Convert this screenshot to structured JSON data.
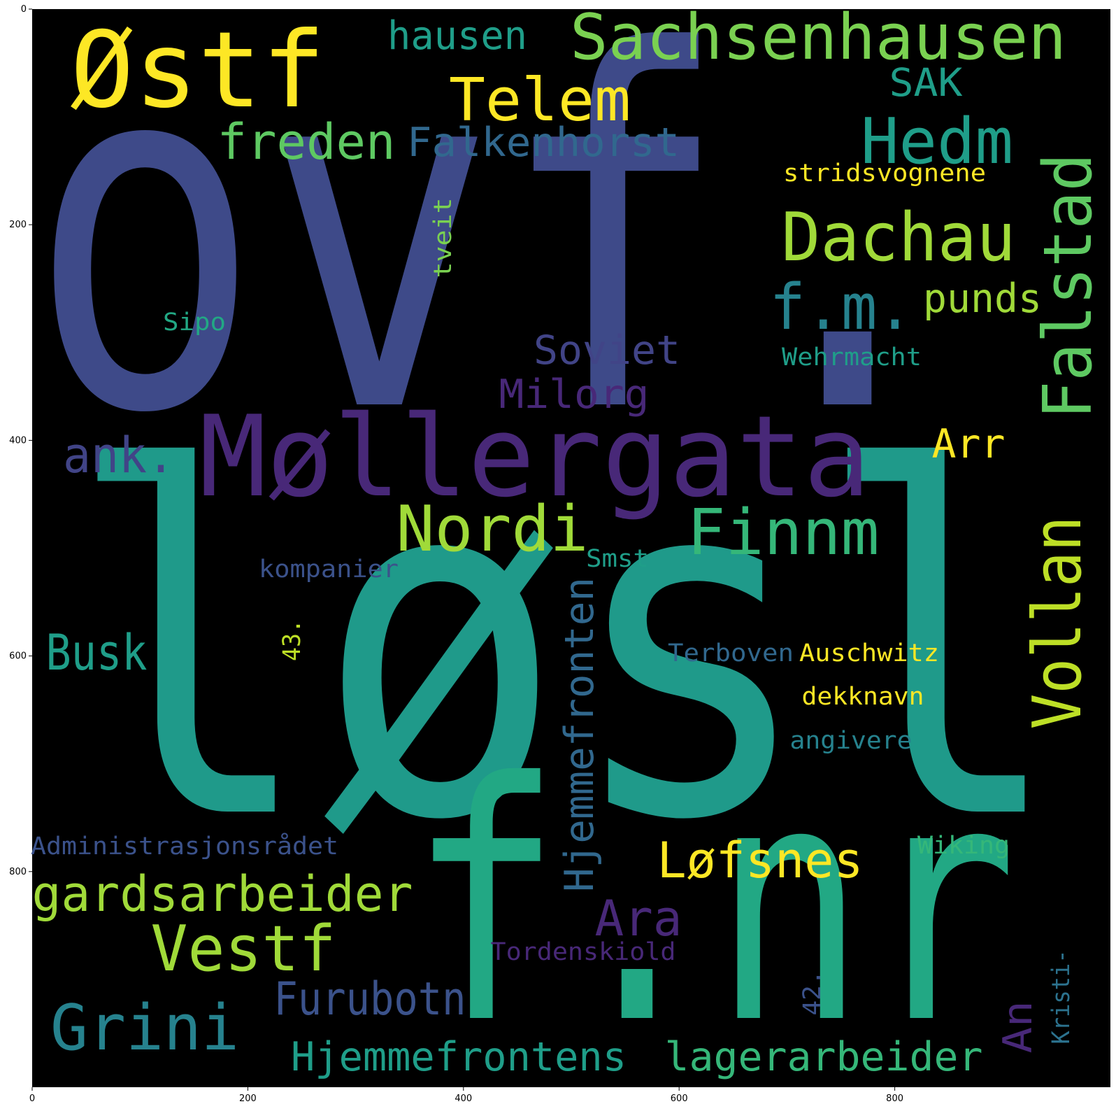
{
  "figure": {
    "x_axis": {
      "ticks": [
        "0",
        "200",
        "400",
        "600",
        "800"
      ]
    },
    "y_axis": {
      "ticks": [
        "0",
        "200",
        "400",
        "600",
        "800"
      ]
    }
  },
  "words": [
    {
      "text": "ovf.",
      "color": "#3e4a89"
    },
    {
      "text": "løsl",
      "color": "#1f9a8a"
    },
    {
      "text": "f.nr",
      "color": "#22a884"
    },
    {
      "text": "Møllergata",
      "color": "#482878"
    },
    {
      "text": "Østf",
      "color": "#fde725"
    },
    {
      "text": "Sachsenhausen",
      "color": "#7ad151"
    },
    {
      "text": "Telem",
      "color": "#fde725"
    },
    {
      "text": "hausen",
      "color": "#1f9e89"
    },
    {
      "text": "SAK",
      "color": "#1f9e89"
    },
    {
      "text": "Hedm",
      "color": "#1f9e89"
    },
    {
      "text": "freden",
      "color": "#5ec962"
    },
    {
      "text": "Falkenhorst",
      "color": "#31688e"
    },
    {
      "text": "stridsvognene",
      "color": "#fde725"
    },
    {
      "text": "Falstad",
      "color": "#5ec962"
    },
    {
      "text": "Dachau",
      "color": "#a0da39"
    },
    {
      "text": "tveit",
      "color": "#7ad151"
    },
    {
      "text": "f.m.",
      "color": "#26828e"
    },
    {
      "text": "punds",
      "color": "#a0da39"
    },
    {
      "text": "Sipo",
      "color": "#22a884"
    },
    {
      "text": "Soviet",
      "color": "#414487"
    },
    {
      "text": "Wehrmacht",
      "color": "#1f9e89"
    },
    {
      "text": "Milorg",
      "color": "#482878"
    },
    {
      "text": "ank.",
      "color": "#414487"
    },
    {
      "text": "Arr",
      "color": "#fde725"
    },
    {
      "text": "Nordi",
      "color": "#a0da39"
    },
    {
      "text": "Finnm",
      "color": "#35b779"
    },
    {
      "text": "Vollan",
      "color": "#bddf26"
    },
    {
      "text": "kompanier",
      "color": "#3b528b"
    },
    {
      "text": "Smst",
      "color": "#1f9e89"
    },
    {
      "text": "Hjemmefronten",
      "color": "#31688e"
    },
    {
      "text": "43.",
      "color": "#bddf26"
    },
    {
      "text": "Busk",
      "color": "#1f9e89"
    },
    {
      "text": "Terboven",
      "color": "#31688e"
    },
    {
      "text": "Auschwitz",
      "color": "#fde725"
    },
    {
      "text": "dekknavn",
      "color": "#fde725"
    },
    {
      "text": "angivere",
      "color": "#26828e"
    },
    {
      "text": "Administrasjonsrådet",
      "color": "#3b528b"
    },
    {
      "text": "Wiking",
      "color": "#35b779"
    },
    {
      "text": "Løfsnes",
      "color": "#fde725"
    },
    {
      "text": "gardsarbeider",
      "color": "#a0da39"
    },
    {
      "text": "Ara",
      "color": "#482878"
    },
    {
      "text": "Vestf",
      "color": "#a0da39"
    },
    {
      "text": "Tordenskiold",
      "color": "#482878"
    },
    {
      "text": "42.",
      "color": "#3b528b"
    },
    {
      "text": "Kristi-",
      "color": "#2c728e"
    },
    {
      "text": "An",
      "color": "#482878"
    },
    {
      "text": "Furubotn",
      "color": "#3b528b"
    },
    {
      "text": "Grini",
      "color": "#26828e"
    },
    {
      "text": "Hjemmefrontens",
      "color": "#1f9e89"
    },
    {
      "text": "lagerarbeider",
      "color": "#35b779"
    }
  ]
}
